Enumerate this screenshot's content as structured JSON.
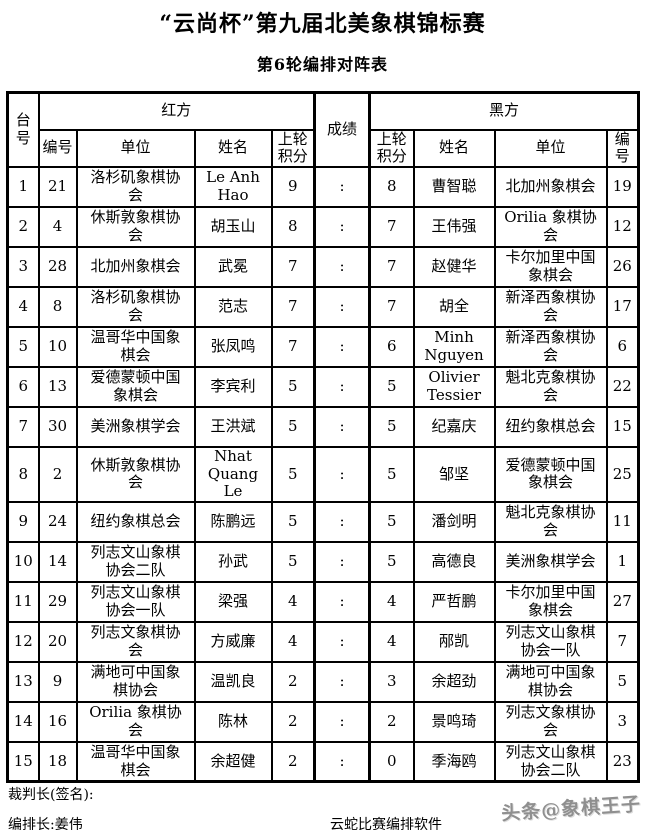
{
  "page": {
    "title": "“云尚杯”第九届北美象棋锦标赛",
    "subtitle": "第6轮编排对阵表"
  },
  "table": {
    "headers": {
      "table_no": "台号",
      "red_side": "红方",
      "result": "成绩",
      "black_side": "黑方",
      "player_no": "编号",
      "unit": "单位",
      "name": "姓名",
      "prev_score": "上轮积分"
    },
    "rows": [
      {
        "board": "1",
        "red_no": "21",
        "red_unit": "洛杉矶象棋协会",
        "red_name": "Le Anh Hao",
        "red_score": "9",
        "result": ":",
        "black_score": "8",
        "black_name": "曹智聪",
        "black_unit": "北加州象棋会",
        "black_no": "19"
      },
      {
        "board": "2",
        "red_no": "4",
        "red_unit": "休斯敦象棋协会",
        "red_name": "胡玉山",
        "red_score": "8",
        "result": ":",
        "black_score": "7",
        "black_name": "王伟强",
        "black_unit": "Orilia 象棋协会",
        "black_no": "12"
      },
      {
        "board": "3",
        "red_no": "28",
        "red_unit": "北加州象棋会",
        "red_name": "武冕",
        "red_score": "7",
        "result": ":",
        "black_score": "7",
        "black_name": "赵健华",
        "black_unit": "卡尔加里中国象棋会",
        "black_no": "26"
      },
      {
        "board": "4",
        "red_no": "8",
        "red_unit": "洛杉矶象棋协会",
        "red_name": "范志",
        "red_score": "7",
        "result": ":",
        "black_score": "7",
        "black_name": "胡全",
        "black_unit": "新泽西象棋协会",
        "black_no": "17"
      },
      {
        "board": "5",
        "red_no": "10",
        "red_unit": "温哥华中国象棋会",
        "red_name": "张凤鸣",
        "red_score": "7",
        "result": ":",
        "black_score": "6",
        "black_name": "Minh Nguyen",
        "black_unit": "新泽西象棋协会",
        "black_no": "6"
      },
      {
        "board": "6",
        "red_no": "13",
        "red_unit": "爱德蒙顿中国象棋会",
        "red_name": "李宾利",
        "red_score": "5",
        "result": ":",
        "black_score": "5",
        "black_name": "Olivier Tessier",
        "black_unit": "魁北克象棋协会",
        "black_no": "22"
      },
      {
        "board": "7",
        "red_no": "30",
        "red_unit": "美洲象棋学会",
        "red_name": "王洪斌",
        "red_score": "5",
        "result": ":",
        "black_score": "5",
        "black_name": "纪嘉庆",
        "black_unit": "纽约象棋总会",
        "black_no": "15"
      },
      {
        "board": "8",
        "red_no": "2",
        "red_unit": "休斯敦象棋协会",
        "red_name": "Nhat Quang Le",
        "red_score": "5",
        "result": ":",
        "black_score": "5",
        "black_name": "邹坚",
        "black_unit": "爱德蒙顿中国象棋会",
        "black_no": "25"
      },
      {
        "board": "9",
        "red_no": "24",
        "red_unit": "纽约象棋总会",
        "red_name": "陈鹏远",
        "red_score": "5",
        "result": ":",
        "black_score": "5",
        "black_name": "潘剑明",
        "black_unit": "魁北克象棋协会",
        "black_no": "11"
      },
      {
        "board": "10",
        "red_no": "14",
        "red_unit": "列志文山象棋协会二队",
        "red_name": "孙武",
        "red_score": "5",
        "result": ":",
        "black_score": "5",
        "black_name": "高德良",
        "black_unit": "美洲象棋学会",
        "black_no": "1"
      },
      {
        "board": "11",
        "red_no": "29",
        "red_unit": "列志文山象棋协会一队",
        "red_name": "梁强",
        "red_score": "4",
        "result": ":",
        "black_score": "4",
        "black_name": "严哲鹏",
        "black_unit": "卡尔加里中国象棋会",
        "black_no": "27"
      },
      {
        "board": "12",
        "red_no": "20",
        "red_unit": "列志文象棋协会",
        "red_name": "方威廉",
        "red_score": "4",
        "result": ":",
        "black_score": "4",
        "black_name": "邴凯",
        "black_unit": "列志文山象棋协会一队",
        "black_no": "7"
      },
      {
        "board": "13",
        "red_no": "9",
        "red_unit": "满地可中国象棋协会",
        "red_name": "温凯良",
        "red_score": "2",
        "result": ":",
        "black_score": "3",
        "black_name": "余超劲",
        "black_unit": "满地可中国象棋协会",
        "black_no": "5"
      },
      {
        "board": "14",
        "red_no": "16",
        "red_unit": "Orilia 象棋协会",
        "red_name": "陈林",
        "red_score": "2",
        "result": ":",
        "black_score": "2",
        "black_name": "景鸣琦",
        "black_unit": "列志文象棋协会",
        "black_no": "3"
      },
      {
        "board": "15",
        "red_no": "18",
        "red_unit": "温哥华中国象棋会",
        "red_name": "余超健",
        "red_score": "2",
        "result": ":",
        "black_score": "0",
        "black_name": "季海鸥",
        "black_unit": "列志文山象棋协会二队",
        "black_no": "23"
      }
    ]
  },
  "footer": {
    "referee": "裁判长(签名):",
    "arranger": "编排长:姜伟",
    "software": "云蛇比赛编排软件",
    "watermark": "头条@象棋王子"
  }
}
